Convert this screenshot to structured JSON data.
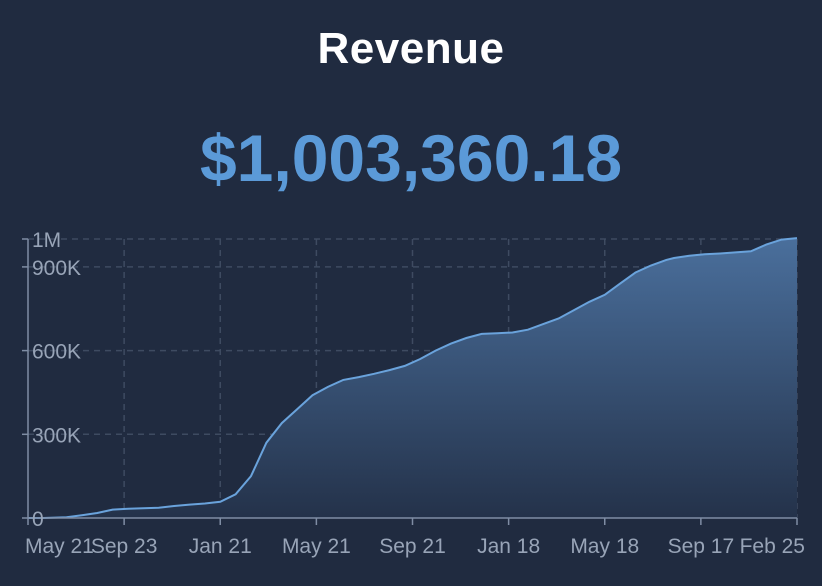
{
  "title": "Revenue",
  "total": "$1,003,360.18",
  "colors": {
    "background": "#202b40",
    "line": "#6aa3dc",
    "area_top": "#4a6f9c",
    "area_bottom": "#24324a",
    "total_text": "#5b9ad8"
  },
  "chart_data": {
    "type": "area",
    "ylim": [
      0,
      1000000
    ],
    "ytick_values": [
      0,
      300000,
      600000,
      900000,
      1000000
    ],
    "ytick_labels": [
      "0",
      "300K",
      "600K",
      "900K",
      "1M"
    ],
    "xtick_labels": [
      "May 21",
      "Sep 23",
      "Jan 21",
      "May 21",
      "Sep 21",
      "Jan 18",
      "May 18",
      "Sep 17",
      "Feb 25"
    ],
    "grid": true,
    "x": [
      0,
      0.02,
      0.05,
      0.07,
      0.09,
      0.11,
      0.13,
      0.15,
      0.17,
      0.19,
      0.21,
      0.23,
      0.25,
      0.27,
      0.29,
      0.31,
      0.33,
      0.35,
      0.37,
      0.39,
      0.41,
      0.43,
      0.45,
      0.47,
      0.49,
      0.51,
      0.53,
      0.55,
      0.57,
      0.59,
      0.61,
      0.63,
      0.65,
      0.67,
      0.69,
      0.71,
      0.73,
      0.75,
      0.77,
      0.79,
      0.81,
      0.83,
      0.84,
      0.86,
      0.88,
      0.9,
      0.92,
      0.94,
      0.96,
      0.98,
      1.0
    ],
    "y": [
      0,
      0,
      3000,
      10000,
      18000,
      30000,
      33000,
      35000,
      37000,
      43000,
      48000,
      52000,
      58000,
      85000,
      150000,
      270000,
      340000,
      390000,
      440000,
      470000,
      495000,
      505000,
      517000,
      530000,
      545000,
      570000,
      600000,
      625000,
      645000,
      660000,
      662000,
      665000,
      675000,
      695000,
      715000,
      745000,
      775000,
      800000,
      840000,
      880000,
      905000,
      925000,
      932000,
      940000,
      945000,
      948000,
      952000,
      956000,
      980000,
      998000,
      1003360
    ]
  }
}
